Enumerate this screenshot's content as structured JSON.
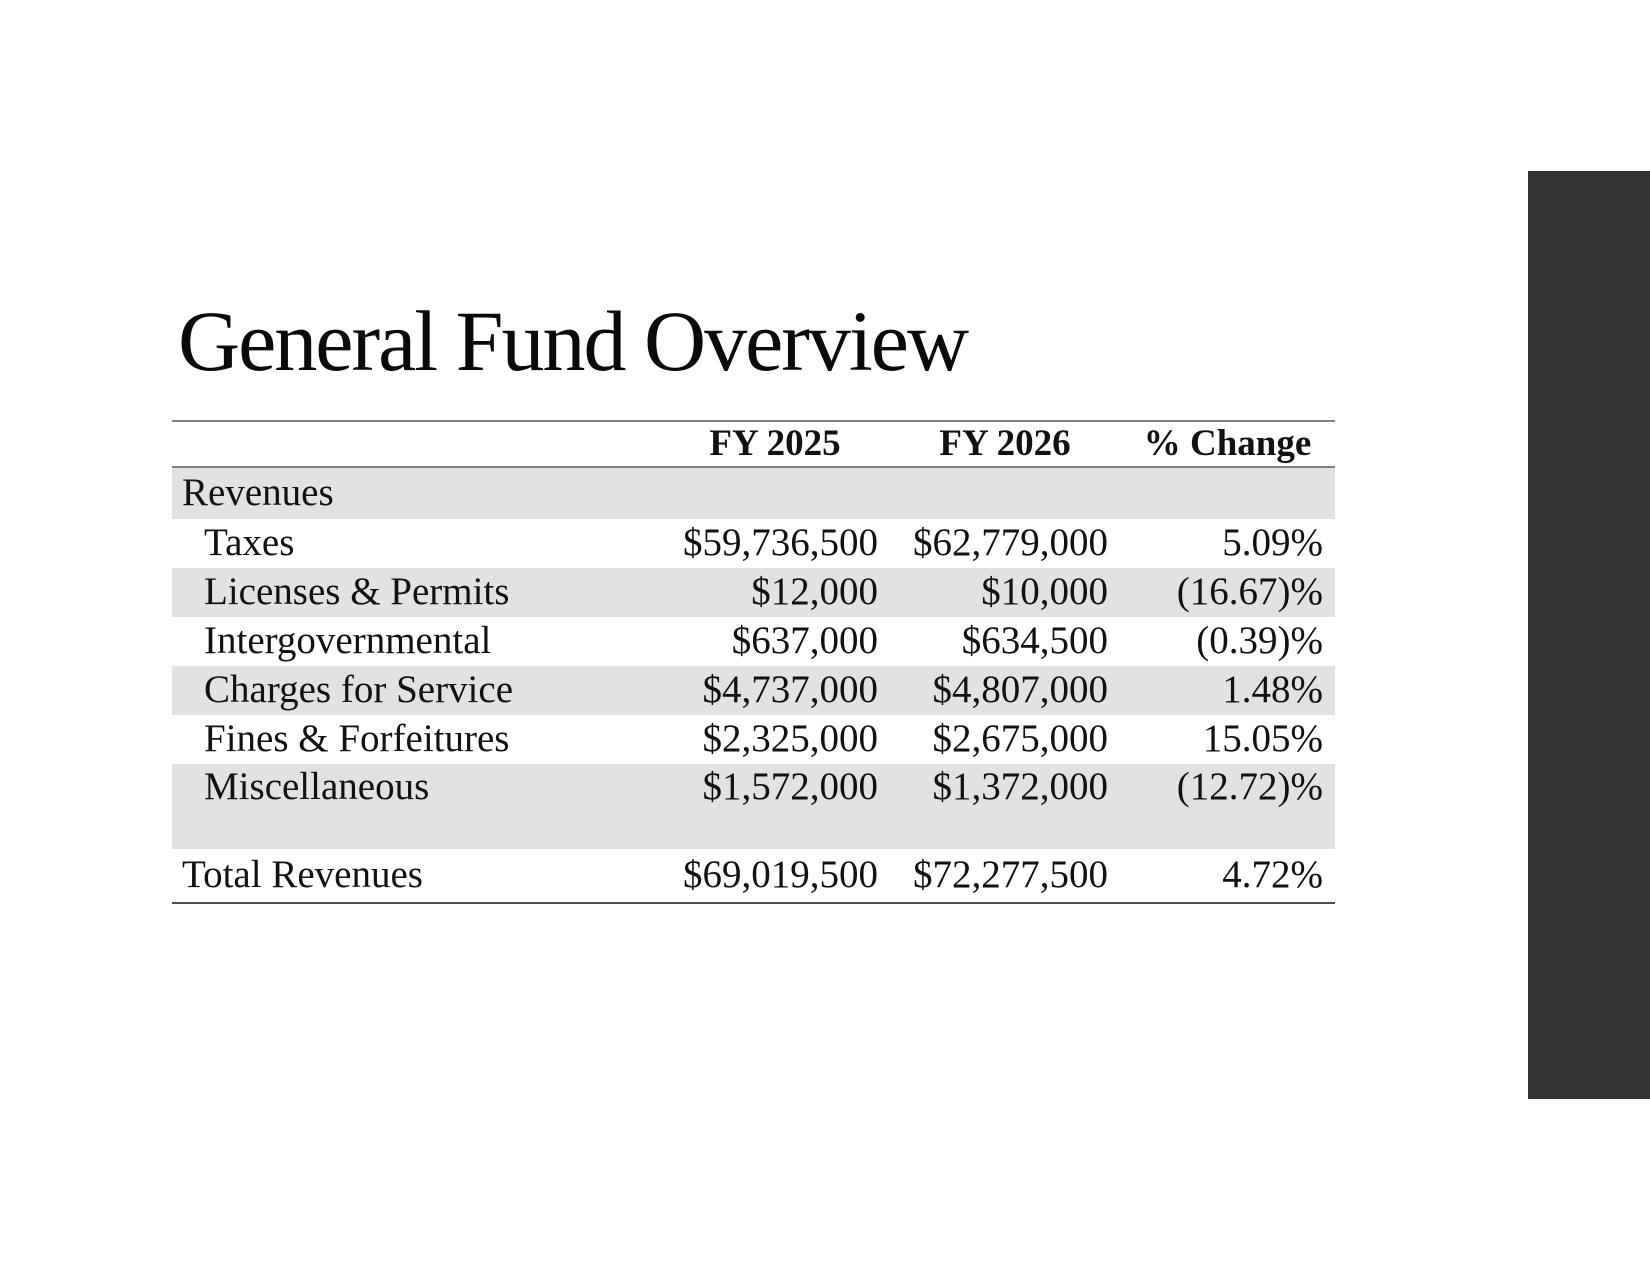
{
  "slide": {
    "title": "General Fund Overview",
    "accent_bar_color": "#333336",
    "row_band_color": "#e2e2e3",
    "table": {
      "headers": {
        "blank": "",
        "fy2025": "FY 2025",
        "fy2026": "FY 2026",
        "change": "% Change"
      },
      "section_label": "Revenues",
      "rows": [
        {
          "label": "Taxes",
          "fy2025": "$59,736,500",
          "fy2026": "$62,779,000",
          "change": "5.09%"
        },
        {
          "label": "Licenses & Permits",
          "fy2025": "$12,000",
          "fy2026": "$10,000",
          "change": "(16.67)%"
        },
        {
          "label": "Intergovernmental",
          "fy2025": "$637,000",
          "fy2026": "$634,500",
          "change": "(0.39)%"
        },
        {
          "label": "Charges for Service",
          "fy2025": "$4,737,000",
          "fy2026": "$4,807,000",
          "change": "1.48%"
        },
        {
          "label": "Fines & Forfeitures",
          "fy2025": "$2,325,000",
          "fy2026": "$2,675,000",
          "change": "15.05%"
        },
        {
          "label": "Miscellaneous",
          "fy2025": "$1,572,000",
          "fy2026": "$1,372,000",
          "change": "(12.72)%"
        }
      ],
      "total": {
        "label": "Total Revenues",
        "fy2025": "$69,019,500",
        "fy2026": "$72,277,500",
        "change": "4.72%"
      }
    }
  }
}
